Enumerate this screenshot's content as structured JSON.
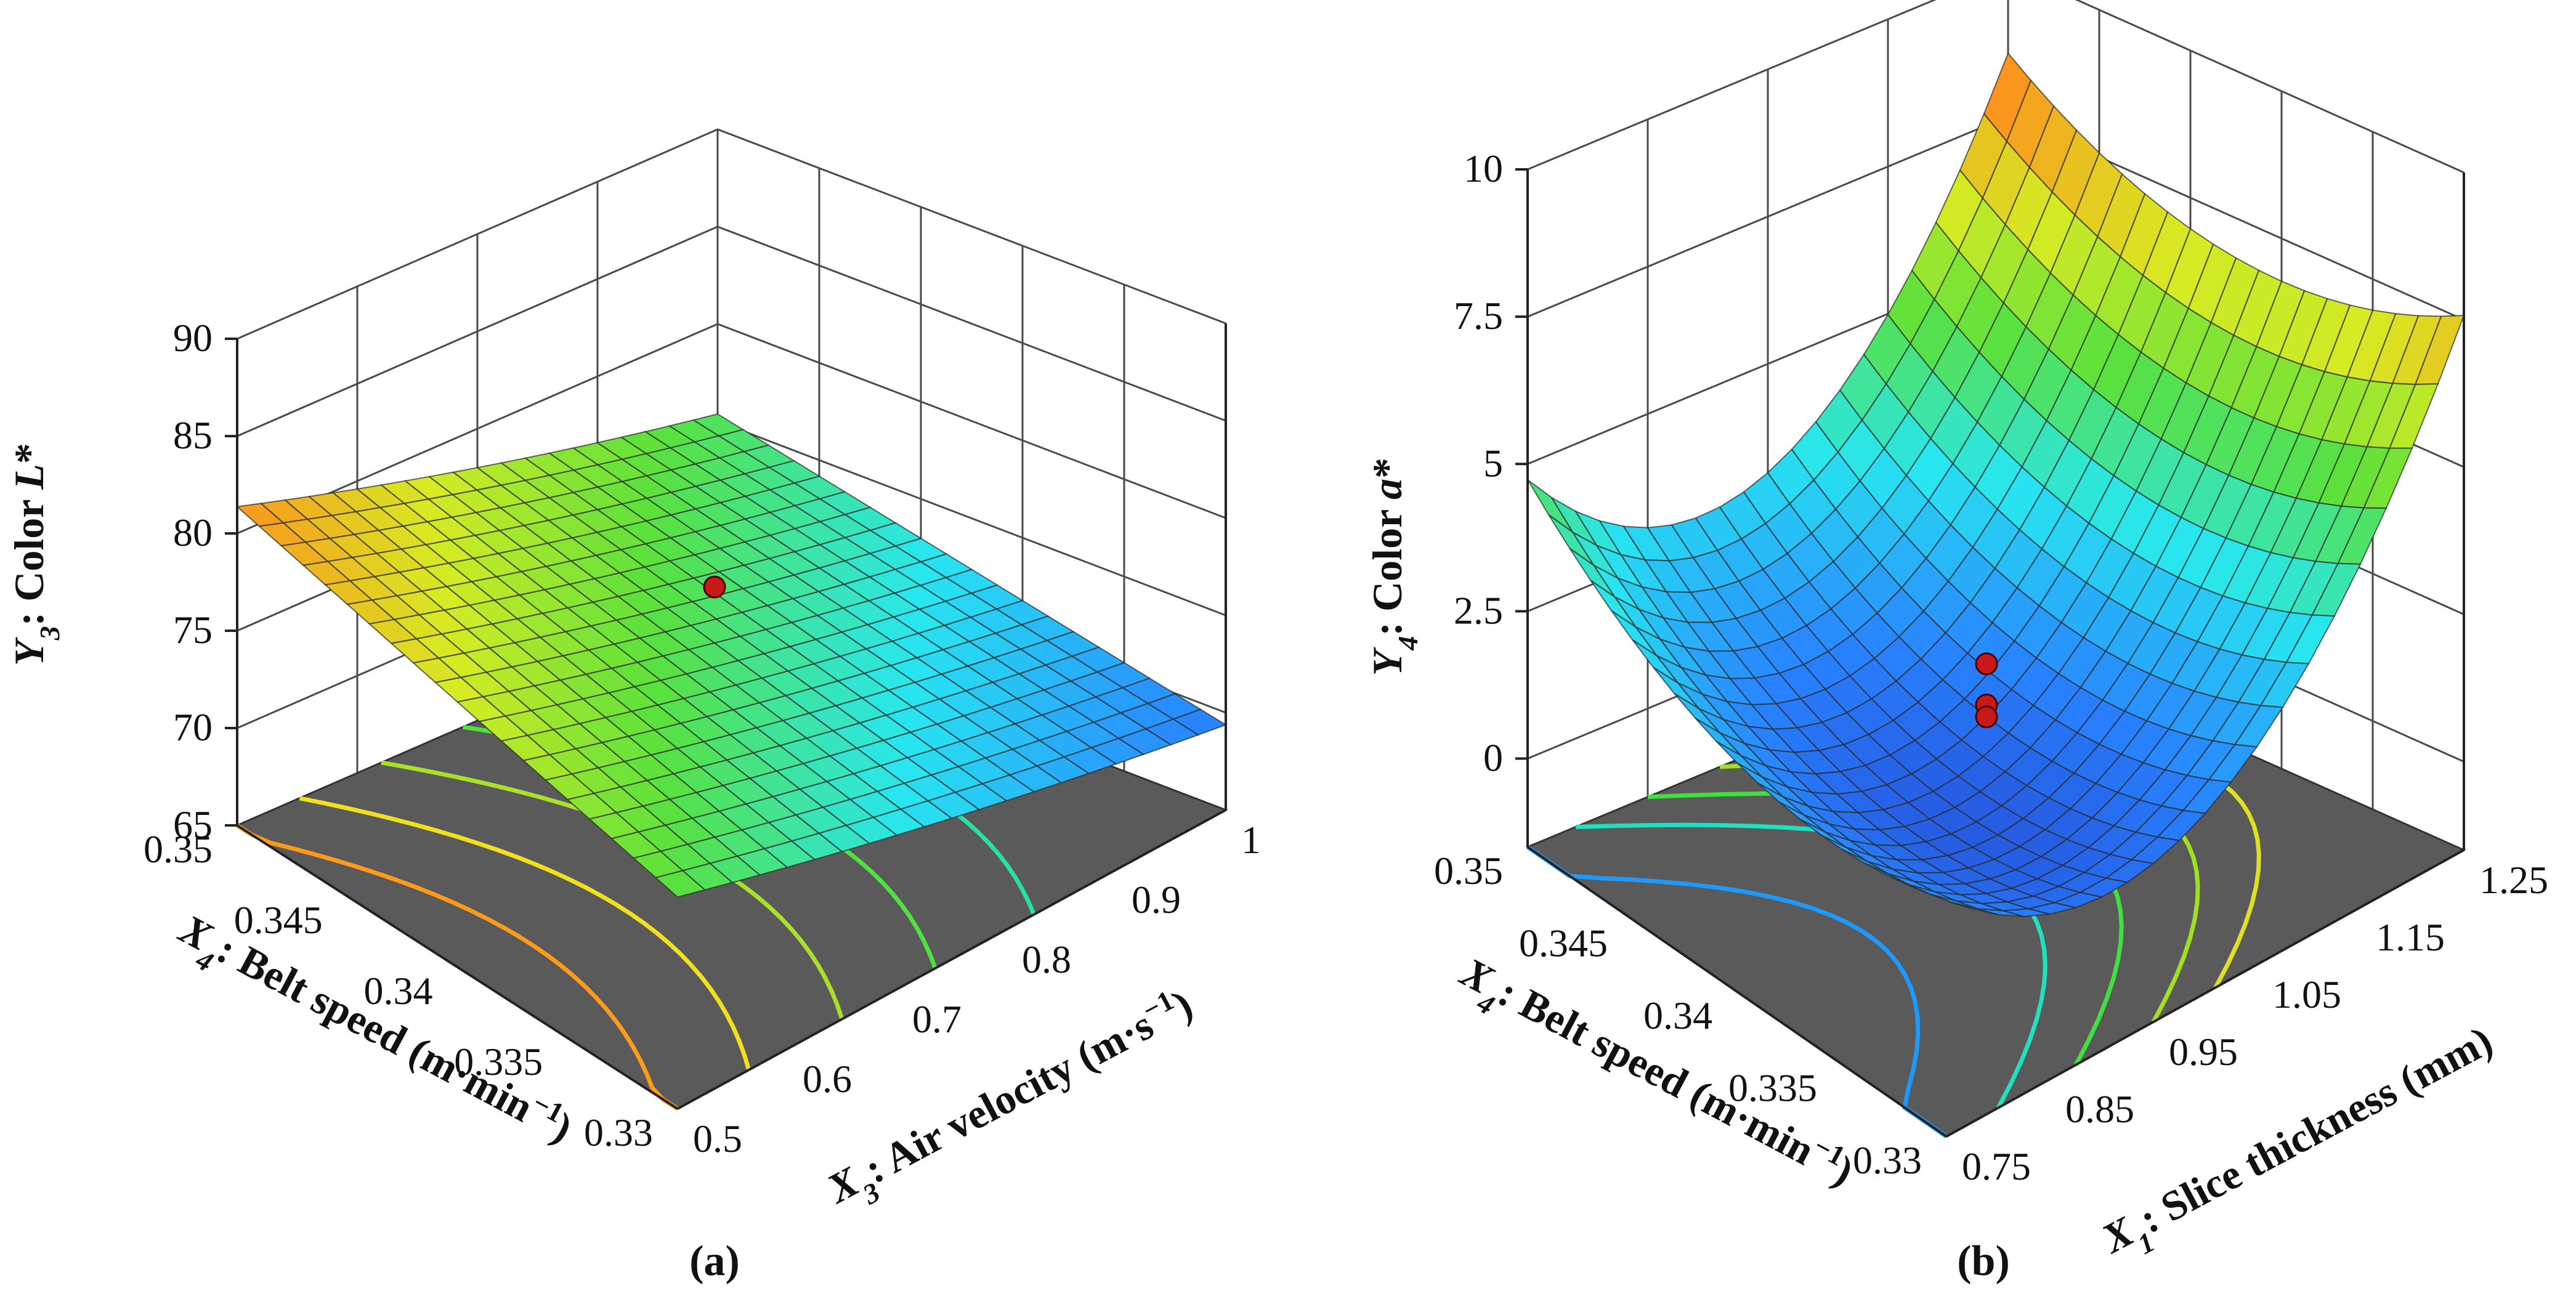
{
  "chart_data": [
    {
      "type": "surface3d",
      "panel_label": "(a)",
      "zlabel": {
        "var": "Y",
        "sub": "3",
        "rest": ": Color ",
        "ital": "L",
        "tail": "*"
      },
      "xlabel": {
        "var": "X",
        "sub": "3",
        "rest": ": Air velocity (m·s",
        "sup": "−1",
        "tail": ")"
      },
      "ylabel": {
        "var": "X",
        "sub": "4",
        "rest": ": Belt speed (m·min",
        "sup": "−1",
        "tail": ")"
      },
      "zlim": [
        65,
        90
      ],
      "z_ticks": [
        "65",
        "70",
        "75",
        "80",
        "85",
        "90"
      ],
      "x_range": [
        0.5,
        1.0
      ],
      "x_ticks": [
        "0.5",
        "0.6",
        "0.7",
        "0.8",
        "0.9",
        "1"
      ],
      "y_range": [
        0.33,
        0.35
      ],
      "y_ticks": [
        "0.33",
        "0.335",
        "0.34",
        "0.345",
        "0.35"
      ],
      "corner_values": {
        "x_low_y_low": 75.5,
        "x_high_y_low": 69.0,
        "x_low_y_high": 81.0,
        "x_high_y_high": 75.0
      },
      "curvature": 1.5,
      "design_points": [
        {
          "x": 0.75,
          "y": 0.34,
          "z": 78.0
        }
      ],
      "contour_colors": [
        "#ff9a1a",
        "#f0e020",
        "#a8e02a",
        "#50e040",
        "#28e0a0"
      ]
    },
    {
      "type": "surface3d",
      "panel_label": "(b)",
      "zlabel": {
        "var": "Y",
        "sub": "4",
        "rest": ": Color ",
        "ital": "a",
        "tail": "*"
      },
      "xlabel": {
        "var": "X",
        "sub": "1",
        "rest": ": Slice thickness (mm)",
        "sup": "",
        "tail": ""
      },
      "ylabel": {
        "var": "X",
        "sub": "4",
        "rest": ": Belt speed (m·min",
        "sup": "−1",
        "tail": ")"
      },
      "zlim": [
        -1.5,
        10
      ],
      "z_ticks": [
        "0",
        "2.5",
        "5",
        "7.5",
        "10"
      ],
      "x_range": [
        0.75,
        1.25
      ],
      "x_ticks": [
        "0.75",
        "0.85",
        "0.95",
        "1.05",
        "1.15",
        "1.25"
      ],
      "y_range": [
        0.33,
        0.35
      ],
      "y_ticks": [
        "0.33",
        "0.335",
        "0.34",
        "0.345",
        "0.35"
      ],
      "design_points": [
        {
          "x": 1.0,
          "y": 0.34,
          "z": 2.0
        },
        {
          "x": 1.0,
          "y": 0.34,
          "z": 1.3
        },
        {
          "x": 1.0,
          "y": 0.34,
          "z": 1.1
        }
      ],
      "contour_colors": [
        "#1e9aff",
        "#20e0c0",
        "#40e040",
        "#a0e020",
        "#e0e020"
      ]
    }
  ]
}
